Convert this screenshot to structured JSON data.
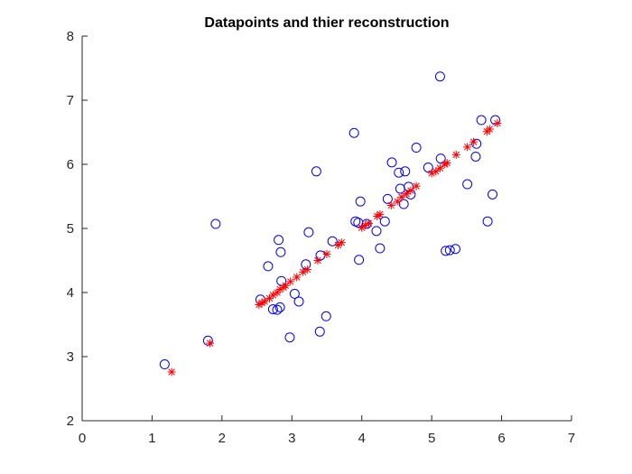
{
  "chart_data": {
    "type": "scatter",
    "title": "Datapoints and thier reconstruction",
    "xlabel": "",
    "ylabel": "",
    "xlim": [
      0,
      7
    ],
    "ylim": [
      2,
      8
    ],
    "xticks": [
      0,
      1,
      2,
      3,
      4,
      5,
      6,
      7
    ],
    "yticks": [
      2,
      3,
      4,
      5,
      6,
      7,
      8
    ],
    "grid": false,
    "legend": "none",
    "series": [
      {
        "marker": "circle",
        "color": "#0000ff",
        "points": [
          [
            1.18,
            2.88
          ],
          [
            1.8,
            3.25
          ],
          [
            1.91,
            5.07
          ],
          [
            2.55,
            3.89
          ],
          [
            2.66,
            4.41
          ],
          [
            2.73,
            3.74
          ],
          [
            2.79,
            3.73
          ],
          [
            2.83,
            3.77
          ],
          [
            2.81,
            4.82
          ],
          [
            2.84,
            4.63
          ],
          [
            2.85,
            4.18
          ],
          [
            2.97,
            3.3
          ],
          [
            3.04,
            3.98
          ],
          [
            3.1,
            3.86
          ],
          [
            3.2,
            4.44
          ],
          [
            3.24,
            4.94
          ],
          [
            3.35,
            5.89
          ],
          [
            3.4,
            3.39
          ],
          [
            3.41,
            4.58
          ],
          [
            3.49,
            3.63
          ],
          [
            3.58,
            4.8
          ],
          [
            3.89,
            6.49
          ],
          [
            3.91,
            5.11
          ],
          [
            3.95,
            5.09
          ],
          [
            3.96,
            4.51
          ],
          [
            3.98,
            5.42
          ],
          [
            4.07,
            5.07
          ],
          [
            4.21,
            4.96
          ],
          [
            4.26,
            4.69
          ],
          [
            4.33,
            5.11
          ],
          [
            4.37,
            5.46
          ],
          [
            4.43,
            6.03
          ],
          [
            4.53,
            5.87
          ],
          [
            4.55,
            5.62
          ],
          [
            4.6,
            5.38
          ],
          [
            4.62,
            5.89
          ],
          [
            4.67,
            5.65
          ],
          [
            4.7,
            5.53
          ],
          [
            4.78,
            6.26
          ],
          [
            4.95,
            5.95
          ],
          [
            5.12,
            7.37
          ],
          [
            5.13,
            6.09
          ],
          [
            5.2,
            4.65
          ],
          [
            5.26,
            4.66
          ],
          [
            5.34,
            4.68
          ],
          [
            5.51,
            5.69
          ],
          [
            5.63,
            6.12
          ],
          [
            5.64,
            6.32
          ],
          [
            5.71,
            6.69
          ],
          [
            5.8,
            5.11
          ],
          [
            5.87,
            5.53
          ],
          [
            5.91,
            6.69
          ]
        ]
      },
      {
        "marker": "asterisk",
        "color": "#ff0000",
        "points": [
          [
            1.28,
            2.76
          ],
          [
            1.83,
            3.21
          ],
          [
            2.53,
            3.81
          ],
          [
            2.57,
            3.84
          ],
          [
            2.61,
            3.86
          ],
          [
            2.68,
            3.91
          ],
          [
            2.73,
            3.96
          ],
          [
            2.79,
            4.0
          ],
          [
            2.83,
            4.05
          ],
          [
            2.88,
            4.08
          ],
          [
            2.91,
            4.11
          ],
          [
            2.98,
            4.17
          ],
          [
            3.07,
            4.24
          ],
          [
            3.16,
            4.32
          ],
          [
            3.22,
            4.36
          ],
          [
            3.37,
            4.5
          ],
          [
            3.5,
            4.6
          ],
          [
            3.66,
            4.74
          ],
          [
            3.71,
            4.78
          ],
          [
            4.0,
            5.01
          ],
          [
            4.05,
            5.05
          ],
          [
            4.1,
            5.08
          ],
          [
            4.22,
            5.19
          ],
          [
            4.26,
            5.22
          ],
          [
            4.42,
            5.36
          ],
          [
            4.51,
            5.42
          ],
          [
            4.57,
            5.49
          ],
          [
            4.64,
            5.54
          ],
          [
            4.7,
            5.59
          ],
          [
            4.78,
            5.66
          ],
          [
            5.0,
            5.86
          ],
          [
            5.06,
            5.89
          ],
          [
            5.12,
            5.94
          ],
          [
            5.19,
            6.0
          ],
          [
            5.22,
            6.02
          ],
          [
            5.35,
            6.15
          ],
          [
            5.51,
            6.27
          ],
          [
            5.6,
            6.35
          ],
          [
            5.79,
            6.51
          ],
          [
            5.83,
            6.55
          ],
          [
            5.94,
            6.64
          ]
        ]
      }
    ]
  },
  "colors": {
    "axis": "#262626",
    "circle_series": "#0000ff",
    "asterisk_series": "#ff0000",
    "background": "#ffffff"
  }
}
